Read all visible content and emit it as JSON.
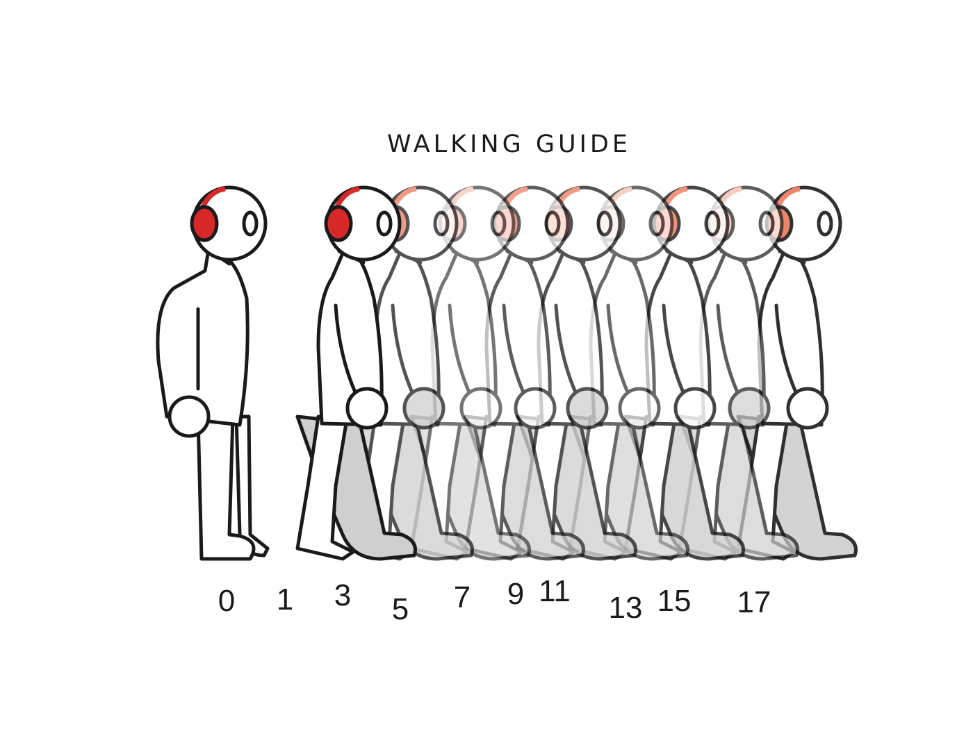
{
  "title": "WALKING GUIDE",
  "colors": {
    "outline": "#1a1a1a",
    "headphone_solid": "#d62828",
    "headphone_faded": "#ec7a5c",
    "headphone_pale": "#f4b8a5",
    "leg_shadow": "#cfcfcf",
    "background": "#ffffff"
  },
  "icons": [
    "headphones-icon"
  ],
  "frames": [
    {
      "label": "0",
      "opacity": 1.0,
      "headphone": "solid",
      "pose": "standing"
    },
    {
      "label": "1",
      "opacity": 1.0,
      "headphone": "solid",
      "pose": "stride"
    },
    {
      "label": "3",
      "opacity": 0.75,
      "headphone": "faded",
      "pose": "stride"
    },
    {
      "label": "5",
      "opacity": 0.6,
      "headphone": "pale",
      "pose": "passing"
    },
    {
      "label": "7",
      "opacity": 0.7,
      "headphone": "faded",
      "pose": "stride"
    },
    {
      "label": "9",
      "opacity": 0.75,
      "headphone": "faded",
      "pose": "stride"
    },
    {
      "label": "11",
      "opacity": 0.65,
      "headphone": "pale",
      "pose": "passing"
    },
    {
      "label": "13",
      "opacity": 0.8,
      "headphone": "faded",
      "pose": "stride"
    },
    {
      "label": "15",
      "opacity": 0.7,
      "headphone": "pale",
      "pose": "stride"
    },
    {
      "label": "17",
      "opacity": 0.9,
      "headphone": "faded",
      "pose": "stride"
    }
  ]
}
